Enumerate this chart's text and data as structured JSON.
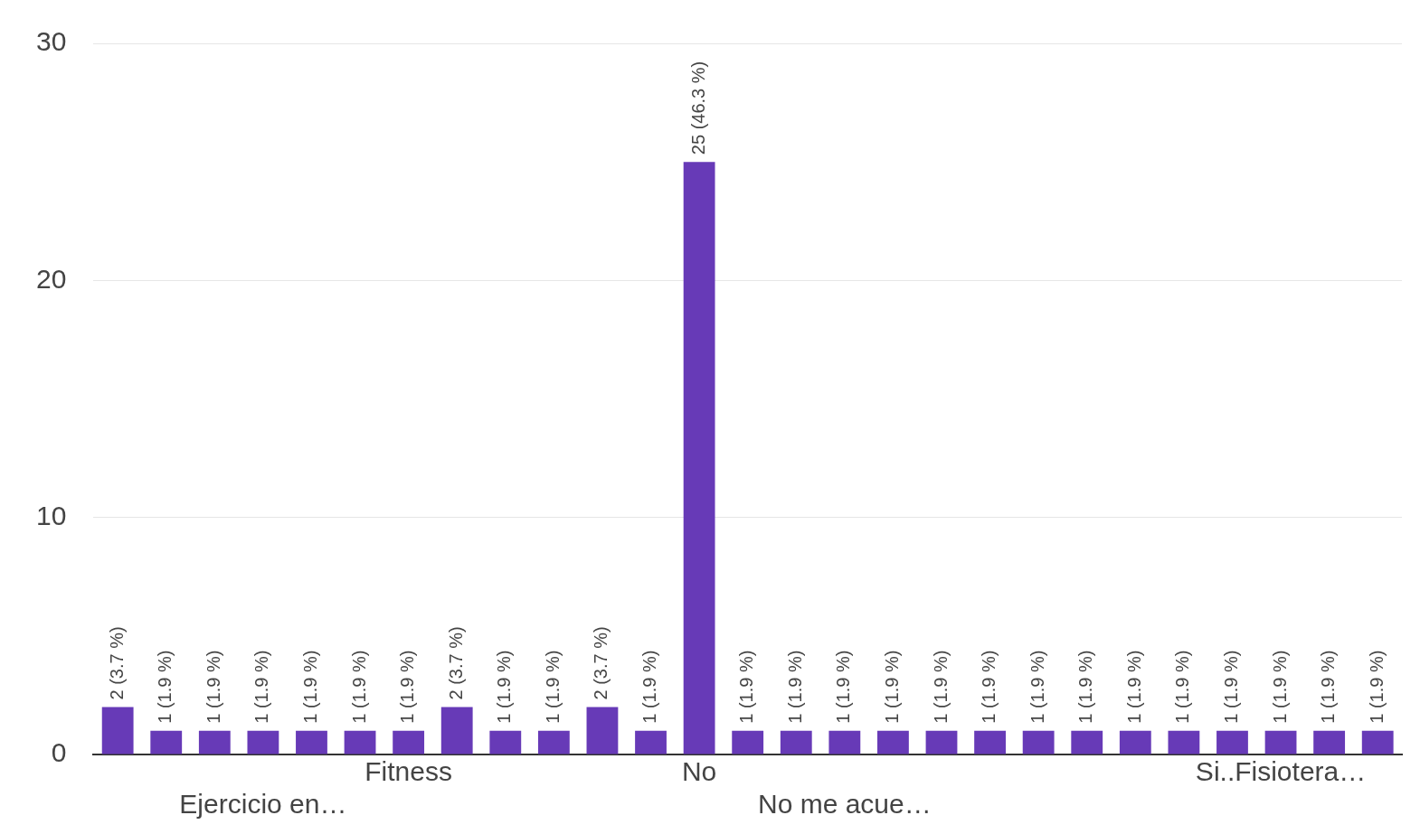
{
  "chart_data": {
    "type": "bar",
    "categories": [
      null,
      null,
      null,
      "Ejercicio en…",
      null,
      null,
      "Fitness",
      null,
      null,
      null,
      null,
      null,
      "No",
      null,
      null,
      "No me acue…",
      null,
      null,
      null,
      null,
      null,
      null,
      null,
      null,
      "Si..Fisiotera…",
      null,
      null
    ],
    "values": [
      2,
      1,
      1,
      1,
      1,
      1,
      1,
      2,
      1,
      1,
      2,
      1,
      25,
      1,
      1,
      1,
      1,
      1,
      1,
      1,
      1,
      1,
      1,
      1,
      1,
      1,
      1
    ],
    "value_labels": [
      "2 (3.7 %)",
      "1 (1.9 %)",
      "1 (1.9 %)",
      "1 (1.9 %)",
      "1 (1.9 %)",
      "1 (1.9 %)",
      "1 (1.9 %)",
      "2 (3.7 %)",
      "1 (1.9 %)",
      "1 (1.9 %)",
      "2 (3.7 %)",
      "1 (1.9 %)",
      "25 (46.3 %)",
      "1 (1.9 %)",
      "1 (1.9 %)",
      "1 (1.9 %)",
      "1 (1.9 %)",
      "1 (1.9 %)",
      "1 (1.9 %)",
      "1 (1.9 %)",
      "1 (1.9 %)",
      "1 (1.9 %)",
      "1 (1.9 %)",
      "1 (1.9 %)",
      "1 (1.9 %)",
      "1 (1.9 %)",
      "1 (1.9 %)"
    ],
    "color": "#673ab7",
    "ylim": [
      0,
      30
    ],
    "yticks": [
      0,
      10,
      20,
      30
    ],
    "grid": "y",
    "legend": false
  }
}
